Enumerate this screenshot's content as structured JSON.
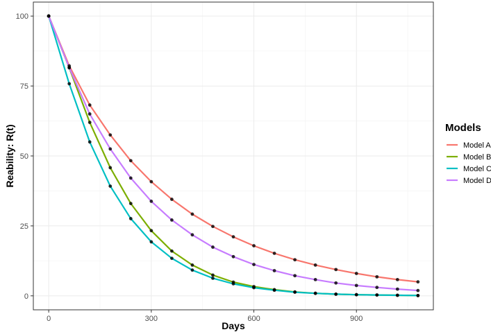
{
  "chart_data": {
    "type": "line",
    "title": "",
    "xlabel": "Days",
    "ylabel": "Reability: R(t)",
    "xlim": [
      -45,
      1125
    ],
    "ylim": [
      -5,
      105
    ],
    "xticks": [
      0,
      300,
      600,
      900
    ],
    "yticks": [
      0,
      25,
      50,
      75,
      100
    ],
    "grid": true,
    "legend": {
      "title": "Models",
      "position": "right"
    },
    "x": [
      0,
      60,
      120,
      180,
      240,
      300,
      360,
      420,
      480,
      540,
      600,
      660,
      720,
      780,
      840,
      900,
      960,
      1020,
      1080
    ],
    "series": [
      {
        "name": "Model A",
        "color": "#F8766D",
        "values": [
          100,
          82.2,
          68.2,
          57.5,
          48.3,
          40.8,
          34.5,
          29.2,
          24.8,
          21.1,
          17.9,
          15.2,
          12.9,
          11.0,
          9.4,
          8.0,
          6.8,
          5.8,
          5.0
        ]
      },
      {
        "name": "Model B",
        "color": "#7CAE00",
        "values": [
          100,
          81.5,
          62.0,
          45.8,
          33.0,
          23.3,
          16.0,
          11.0,
          7.4,
          4.9,
          3.3,
          2.2,
          1.4,
          0.9,
          0.6,
          0.4,
          0.3,
          0.2,
          0.1
        ]
      },
      {
        "name": "Model C",
        "color": "#00BFC4",
        "values": [
          100,
          75.8,
          55.0,
          39.2,
          27.6,
          19.3,
          13.4,
          9.2,
          6.3,
          4.3,
          2.9,
          2.0,
          1.3,
          0.9,
          0.6,
          0.4,
          0.3,
          0.2,
          0.1
        ]
      },
      {
        "name": "Model D",
        "color": "#C77CFF",
        "values": [
          100,
          81.6,
          65.0,
          52.5,
          42.1,
          33.8,
          27.1,
          21.8,
          17.4,
          14.0,
          11.2,
          9.0,
          7.2,
          5.8,
          4.6,
          3.7,
          3.0,
          2.4,
          1.9
        ]
      }
    ],
    "point_color": "#000000"
  }
}
